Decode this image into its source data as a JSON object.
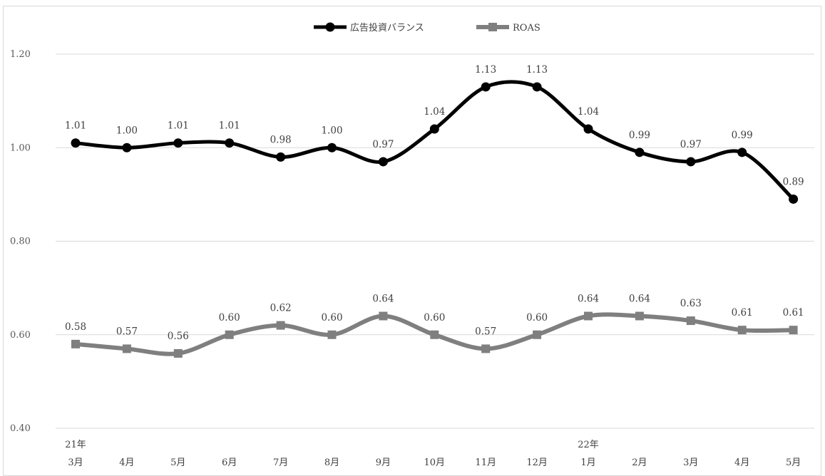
{
  "chart_data": {
    "type": "line",
    "title": "",
    "xlabel": "",
    "ylabel": "",
    "ylim": [
      0.4,
      1.2
    ],
    "yticks": [
      "0.40",
      "0.60",
      "0.80",
      "1.00",
      "1.20"
    ],
    "ytick_values": [
      0.4,
      0.6,
      0.8,
      1.0,
      1.2
    ],
    "grid": true,
    "legend_position": "top-center",
    "smooth": true,
    "categories": [
      {
        "year": "21年",
        "month": "3月"
      },
      {
        "year": "",
        "month": "4月"
      },
      {
        "year": "",
        "month": "5月"
      },
      {
        "year": "",
        "month": "6月"
      },
      {
        "year": "",
        "month": "7月"
      },
      {
        "year": "",
        "month": "8月"
      },
      {
        "year": "",
        "month": "9月"
      },
      {
        "year": "",
        "month": "10月"
      },
      {
        "year": "",
        "month": "11月"
      },
      {
        "year": "",
        "month": "12月"
      },
      {
        "year": "22年",
        "month": "1月"
      },
      {
        "year": "",
        "month": "2月"
      },
      {
        "year": "",
        "month": "3月"
      },
      {
        "year": "",
        "month": "4月"
      },
      {
        "year": "",
        "month": "5月"
      }
    ],
    "series": [
      {
        "name": "広告投資バランス",
        "color": "#000000",
        "marker": "circle",
        "values": [
          1.01,
          1.0,
          1.01,
          1.01,
          0.98,
          1.0,
          0.97,
          1.04,
          1.13,
          1.13,
          1.04,
          0.99,
          0.97,
          0.99,
          0.89
        ],
        "labels": [
          "1.01",
          "1.00",
          "1.01",
          "1.01",
          "0.98",
          "1.00",
          "0.97",
          "1.04",
          "1.13",
          "1.13",
          "1.04",
          "0.99",
          "0.97",
          "0.99",
          "0.89"
        ]
      },
      {
        "name": "ROAS",
        "color": "#7f7f7f",
        "marker": "square",
        "values": [
          0.58,
          0.57,
          0.56,
          0.6,
          0.62,
          0.6,
          0.64,
          0.6,
          0.57,
          0.6,
          0.64,
          0.64,
          0.63,
          0.61,
          0.61
        ],
        "labels": [
          "0.58",
          "0.57",
          "0.56",
          "0.60",
          "0.62",
          "0.60",
          "0.64",
          "0.60",
          "0.57",
          "0.60",
          "0.64",
          "0.64",
          "0.63",
          "0.61",
          "0.61"
        ]
      }
    ]
  }
}
